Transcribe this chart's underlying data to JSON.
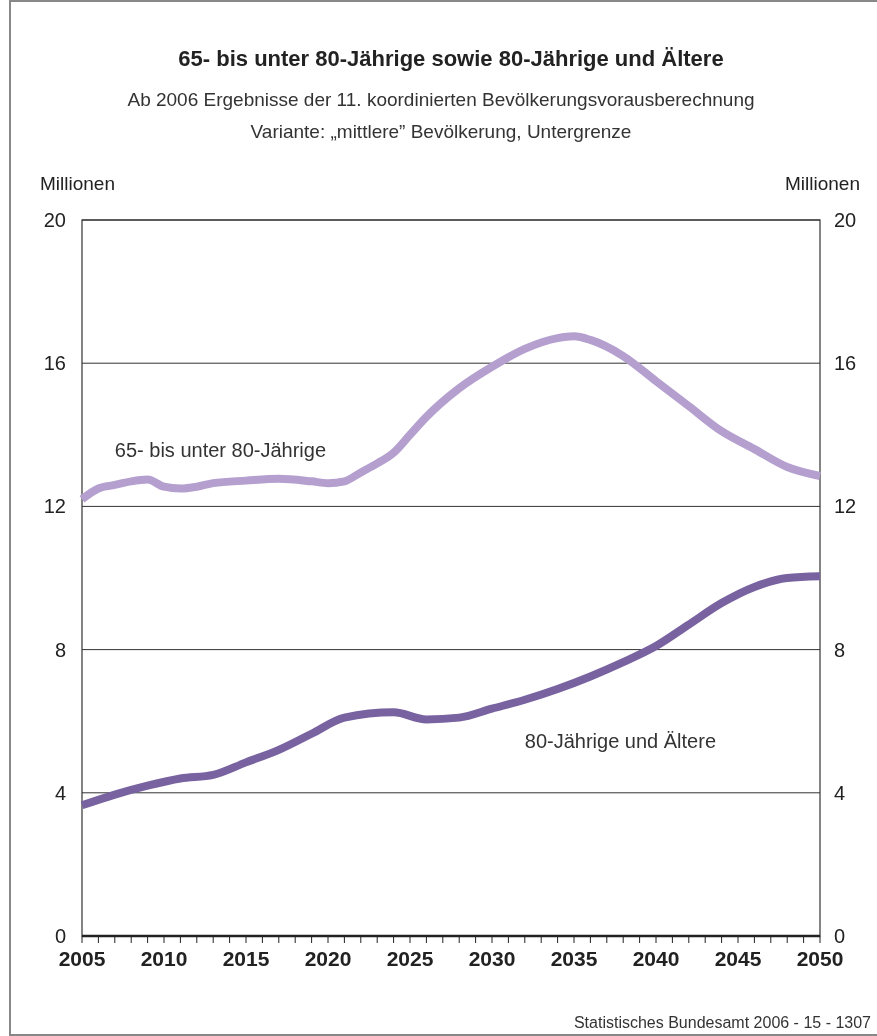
{
  "chart_data": {
    "type": "line",
    "title": "65- bis unter 80-Jährige sowie 80-Jährige und Ältere",
    "subtitle": "Ab 2006 Ergebnisse der 11. koordinierten Bevölkerungsvorausberechnung\nVariante: „mittlere” Bevölkerung, Untergrenze",
    "ylabel": "Millionen",
    "y2label": "Millionen",
    "annotations": [
      "Statistisches Bundesamt 2006 - 15 - 1307"
    ],
    "xlim": [
      2005,
      2050
    ],
    "xticks": [
      2005,
      {
        "value": 2006,
        "label": null
      },
      {
        "value": 2007,
        "label": null
      },
      {
        "value": 2008,
        "label": null
      },
      {
        "value": 2009,
        "label": null
      },
      2010,
      {
        "value": 2011,
        "label": null
      },
      {
        "value": 2012,
        "label": null
      },
      {
        "value": 2013,
        "label": null
      },
      {
        "value": 2014,
        "label": null
      },
      2015,
      {
        "value": 2016,
        "label": null
      },
      {
        "value": 2017,
        "label": null
      },
      {
        "value": 2018,
        "label": null
      },
      {
        "value": 2019,
        "label": null
      },
      2020,
      {
        "value": 2021,
        "label": null
      },
      {
        "value": 2022,
        "label": null
      },
      {
        "value": 2023,
        "label": null
      },
      {
        "value": 2024,
        "label": null
      },
      2025,
      {
        "value": 2026,
        "label": null
      },
      {
        "value": 2027,
        "label": null
      },
      {
        "value": 2028,
        "label": null
      },
      {
        "value": 2029,
        "label": null
      },
      2030,
      {
        "value": 2031,
        "label": null
      },
      {
        "value": 2032,
        "label": null
      },
      {
        "value": 2033,
        "label": null
      },
      {
        "value": 2034,
        "label": null
      },
      2035,
      {
        "value": 2036,
        "label": null
      },
      {
        "value": 2037,
        "label": null
      },
      {
        "value": 2038,
        "label": null
      },
      {
        "value": 2039,
        "label": null
      },
      2040,
      {
        "value": 2041,
        "label": null
      },
      {
        "value": 2042,
        "label": null
      },
      {
        "value": 2043,
        "label": null
      },
      {
        "value": 2044,
        "label": null
      },
      2045,
      {
        "value": 2046,
        "label": null
      },
      {
        "value": 2047,
        "label": null
      },
      {
        "value": 2048,
        "label": null
      },
      {
        "value": 2049,
        "label": null
      },
      2050
    ],
    "ylim": [
      0,
      20
    ],
    "yticks": [
      0,
      4,
      8,
      12,
      16,
      20
    ],
    "y2lim": [
      0,
      20
    ],
    "y2ticks": [
      0,
      4,
      8,
      12,
      16,
      20
    ],
    "grid": "y",
    "series": [
      {
        "name": "65- bis unter 80-Jährige",
        "color": "#b49fcf",
        "x": [
          2005,
          2006,
          2007,
          2008,
          2009,
          2010,
          2011,
          2012,
          2013,
          2015,
          2017,
          2019,
          2020,
          2021,
          2022,
          2023,
          2024,
          2025,
          2026,
          2028,
          2030,
          2032,
          2034,
          2035,
          2036,
          2038,
          2040,
          2042,
          2044,
          2046,
          2048,
          2050
        ],
        "values": [
          12.2,
          12.5,
          12.6,
          12.7,
          12.75,
          12.55,
          12.5,
          12.55,
          12.65,
          12.72,
          12.77,
          12.7,
          12.65,
          12.7,
          12.95,
          13.2,
          13.5,
          14.0,
          14.5,
          15.3,
          15.9,
          16.4,
          16.7,
          16.75,
          16.65,
          16.2,
          15.5,
          14.8,
          14.1,
          13.6,
          13.1,
          12.85
        ]
      },
      {
        "name": "80-Jährige und Ältere",
        "color": "#7862a0",
        "x": [
          2005,
          2007,
          2009,
          2011,
          2013,
          2015,
          2017,
          2019,
          2021,
          2024,
          2026,
          2028,
          2030,
          2032,
          2034,
          2036,
          2038,
          2040,
          2042,
          2044,
          2046,
          2048,
          2050
        ],
        "values": [
          3.65,
          3.95,
          4.2,
          4.4,
          4.5,
          4.85,
          5.2,
          5.65,
          6.1,
          6.25,
          6.05,
          6.1,
          6.35,
          6.6,
          6.9,
          7.25,
          7.65,
          8.1,
          8.7,
          9.3,
          9.75,
          10.0,
          10.05
        ]
      }
    ]
  }
}
